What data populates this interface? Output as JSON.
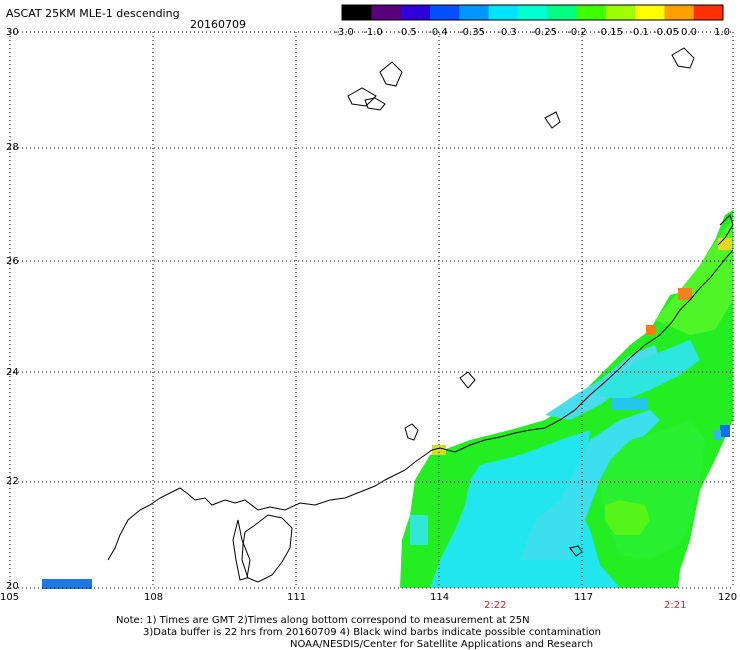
{
  "header": {
    "title": "ASCAT 25KM MLE-1 descending",
    "date": "20160709"
  },
  "colorbar": {
    "labels": [
      "-3.0",
      "-1.0",
      "-0.5",
      "-0.4",
      "-0.35",
      "-0.3",
      "-0.25",
      "-0.2",
      "-0.15",
      "-0.1",
      "-0.05",
      "0.0",
      "1.0"
    ],
    "colors": [
      "#000000",
      "#5a007a",
      "#2f00d8",
      "#0050ff",
      "#0098ff",
      "#00e2ff",
      "#00ffd0",
      "#00ff80",
      "#40ff00",
      "#a0ff00",
      "#ffff00",
      "#ffa000",
      "#ff3000"
    ]
  },
  "axes": {
    "lat_labels": [
      "30",
      "28",
      "26",
      "24",
      "22",
      "20"
    ],
    "lon_labels": [
      "105",
      "108",
      "111",
      "114",
      "117",
      "120"
    ],
    "time_labels": [
      "2:22",
      "2:21"
    ]
  },
  "notes": {
    "line1": "Note: 1) Times are GMT 2)Times along bottom correspond to measurement at 25N",
    "line2": "3)Data buffer is 22 hrs from 20160709 4) Black wind barbs indicate possible contamination",
    "line3": "NOAA/NESDIS/Center for Satellite Applications and Research"
  }
}
